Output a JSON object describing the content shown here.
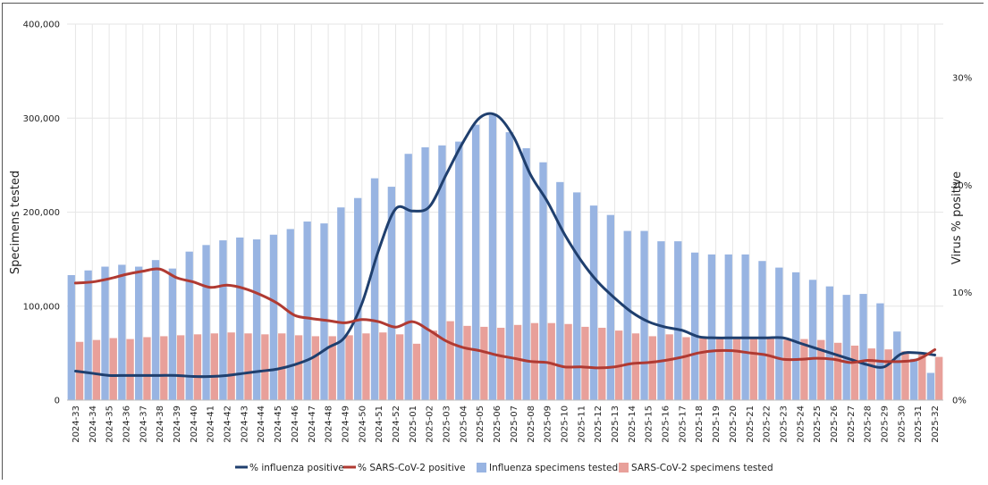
{
  "chart_data": {
    "type": "bar",
    "title": "",
    "ylabel_left": "Specimens tested",
    "ylabel_right": "Virus % positive",
    "ylim_left": [
      0,
      400000
    ],
    "ylim_right": [
      0,
      35
    ],
    "left_ticks": [
      "0",
      "100,000",
      "200,000",
      "300,000",
      "400,000"
    ],
    "right_ticks": [
      "0%",
      "10%",
      "20%",
      "30%"
    ],
    "grid": true,
    "legend_position": "bottom",
    "categories": [
      "2024-33",
      "2024-34",
      "2024-35",
      "2024-36",
      "2024-37",
      "2024-38",
      "2024-39",
      "2024-40",
      "2024-41",
      "2024-42",
      "2024-43",
      "2024-44",
      "2024-45",
      "2024-46",
      "2024-47",
      "2024-48",
      "2024-49",
      "2024-50",
      "2024-51",
      "2024-52",
      "2025-01",
      "2025-02",
      "2025-03",
      "2025-04",
      "2025-05",
      "2025-06",
      "2025-07",
      "2025-08",
      "2025-09",
      "2025-10",
      "2025-11",
      "2025-12",
      "2025-13",
      "2025-14",
      "2025-15",
      "2025-16",
      "2025-17",
      "2025-18",
      "2025-19",
      "2025-20",
      "2025-21",
      "2025-22",
      "2025-23",
      "2025-24",
      "2025-25",
      "2025-26",
      "2025-27",
      "2025-28",
      "2025-29",
      "2025-30",
      "2025-31",
      "2025-32"
    ],
    "bar_series": [
      {
        "name": "Influenza specimens tested",
        "color": "#98b4e2",
        "axis": "left",
        "values": [
          133000,
          138000,
          142000,
          144000,
          142000,
          149000,
          140000,
          158000,
          165000,
          170000,
          173000,
          171000,
          176000,
          182000,
          190000,
          188000,
          205000,
          215000,
          236000,
          227000,
          262000,
          269000,
          271000,
          275000,
          293000,
          303000,
          285000,
          268000,
          253000,
          232000,
          221000,
          207000,
          197000,
          180000,
          180000,
          169000,
          169000,
          157000,
          155000,
          155000,
          155000,
          148000,
          141000,
          136000,
          128000,
          121000,
          112000,
          113000,
          103000,
          73000,
          44000,
          29000
        ]
      },
      {
        "name": "SARS-CoV-2 specimens tested",
        "color": "#e8a09a",
        "axis": "left",
        "values": [
          62000,
          64000,
          66000,
          65000,
          67000,
          68000,
          69000,
          70000,
          71000,
          72000,
          71000,
          70000,
          71000,
          69000,
          68000,
          68000,
          69000,
          71000,
          72000,
          70000,
          60000,
          74000,
          84000,
          79000,
          78000,
          77000,
          80000,
          82000,
          82000,
          81000,
          78000,
          77000,
          74000,
          71000,
          68000,
          70000,
          67000,
          67000,
          65000,
          65000,
          66000,
          66000,
          64000,
          65000,
          64000,
          61000,
          58000,
          55000,
          54000,
          52000,
          49000,
          46000
        ]
      }
    ],
    "line_series": [
      {
        "name": "% influenza positive",
        "color": "#1f3f6e",
        "axis": "right",
        "values": [
          2.7,
          2.5,
          2.3,
          2.3,
          2.3,
          2.3,
          2.3,
          2.2,
          2.2,
          2.3,
          2.5,
          2.7,
          2.9,
          3.3,
          3.9,
          4.9,
          5.9,
          9.0,
          14.0,
          17.8,
          17.6,
          18.0,
          21.0,
          24.0,
          26.3,
          26.5,
          24.5,
          21.0,
          18.5,
          15.5,
          13.0,
          11.0,
          9.5,
          8.2,
          7.3,
          6.8,
          6.5,
          5.9,
          5.8,
          5.8,
          5.8,
          5.8,
          5.8,
          5.3,
          4.8,
          4.3,
          3.8,
          3.3,
          3.1,
          4.3,
          4.4,
          4.2
        ]
      },
      {
        "name": "% SARS-CoV-2 positive",
        "color": "#b03a32",
        "axis": "right",
        "values": [
          10.9,
          11.0,
          11.3,
          11.7,
          12.0,
          12.2,
          11.4,
          11.0,
          10.5,
          10.7,
          10.4,
          9.8,
          9.0,
          7.9,
          7.6,
          7.4,
          7.2,
          7.5,
          7.3,
          6.8,
          7.3,
          6.5,
          5.5,
          4.9,
          4.6,
          4.2,
          3.9,
          3.6,
          3.5,
          3.1,
          3.1,
          3.0,
          3.1,
          3.4,
          3.5,
          3.7,
          4.0,
          4.4,
          4.6,
          4.6,
          4.4,
          4.2,
          3.8,
          3.8,
          3.9,
          3.8,
          3.5,
          3.7,
          3.6,
          3.6,
          3.8,
          4.7
        ]
      }
    ],
    "legend": [
      "% influenza positive",
      "% SARS-CoV-2 positive",
      "Influenza specimens tested",
      "SARS-CoV-2 specimens tested"
    ]
  }
}
